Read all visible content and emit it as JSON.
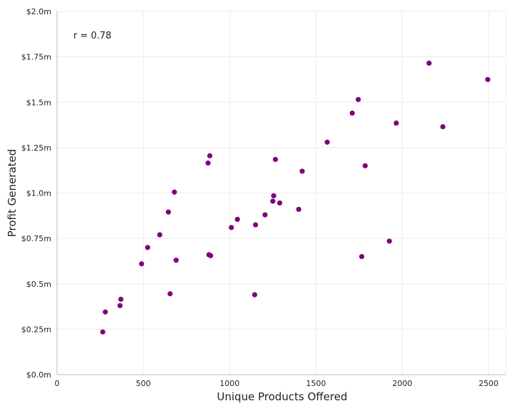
{
  "chart_data": {
    "type": "scatter",
    "xlabel": "Unique Products Offered",
    "ylabel": "Profit Generated",
    "annotation": "r = 0.78",
    "xlim": [
      0,
      2600
    ],
    "ylim": [
      0,
      2000000
    ],
    "x_ticks": [
      0,
      500,
      1000,
      1500,
      2000,
      2500
    ],
    "x_tick_labels": [
      "0",
      "500",
      "1000",
      "1500",
      "2000",
      "2500"
    ],
    "y_ticks": [
      0,
      250000,
      500000,
      750000,
      1000000,
      1250000,
      1500000,
      1750000,
      2000000
    ],
    "y_tick_labels": [
      "$0.0m",
      "$0.25m",
      "$0.5m",
      "$0.75m",
      "$1.0m",
      "$1.25m",
      "$1.5m",
      "$1.75m",
      "$2.0m"
    ],
    "grid": true,
    "point_color": "#800080",
    "points": [
      {
        "x": 265,
        "y": 235000
      },
      {
        "x": 280,
        "y": 345000
      },
      {
        "x": 365,
        "y": 380000
      },
      {
        "x": 370,
        "y": 415000
      },
      {
        "x": 490,
        "y": 610000
      },
      {
        "x": 525,
        "y": 700000
      },
      {
        "x": 595,
        "y": 770000
      },
      {
        "x": 645,
        "y": 895000
      },
      {
        "x": 655,
        "y": 445000
      },
      {
        "x": 680,
        "y": 1005000
      },
      {
        "x": 690,
        "y": 630000
      },
      {
        "x": 875,
        "y": 1165000
      },
      {
        "x": 880,
        "y": 660000
      },
      {
        "x": 885,
        "y": 1205000
      },
      {
        "x": 890,
        "y": 655000
      },
      {
        "x": 1010,
        "y": 810000
      },
      {
        "x": 1045,
        "y": 855000
      },
      {
        "x": 1145,
        "y": 440000
      },
      {
        "x": 1150,
        "y": 825000
      },
      {
        "x": 1205,
        "y": 880000
      },
      {
        "x": 1250,
        "y": 955000
      },
      {
        "x": 1255,
        "y": 985000
      },
      {
        "x": 1265,
        "y": 1185000
      },
      {
        "x": 1290,
        "y": 945000
      },
      {
        "x": 1400,
        "y": 910000
      },
      {
        "x": 1420,
        "y": 1120000
      },
      {
        "x": 1565,
        "y": 1280000
      },
      {
        "x": 1710,
        "y": 1440000
      },
      {
        "x": 1745,
        "y": 1515000
      },
      {
        "x": 1765,
        "y": 650000
      },
      {
        "x": 1785,
        "y": 1150000
      },
      {
        "x": 1925,
        "y": 735000
      },
      {
        "x": 1965,
        "y": 1385000
      },
      {
        "x": 2155,
        "y": 1715000
      },
      {
        "x": 2235,
        "y": 1365000
      },
      {
        "x": 2495,
        "y": 1625000
      }
    ]
  }
}
